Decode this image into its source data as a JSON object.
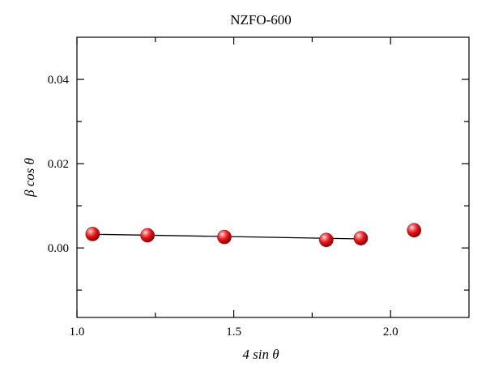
{
  "chart_data": {
    "type": "scatter",
    "title": "NZFO-600",
    "xlabel": "4 sin θ",
    "ylabel": "β cos θ",
    "xlim": [
      1.0,
      2.25
    ],
    "ylim": [
      -0.0165,
      0.05
    ],
    "xticks": [
      {
        "value": 1.0,
        "label": "1.0"
      },
      {
        "value": 1.5,
        "label": "1.5"
      },
      {
        "value": 2.0,
        "label": "2.0"
      }
    ],
    "xminor": [
      1.25,
      1.75
    ],
    "yticks": [
      {
        "value": 0.0,
        "label": "0.00"
      },
      {
        "value": 0.02,
        "label": "0.02"
      },
      {
        "value": 0.04,
        "label": "0.04"
      }
    ],
    "yminor": [
      -0.01,
      0.01,
      0.03
    ],
    "points": [
      {
        "x": 1.05,
        "y": 0.0033
      },
      {
        "x": 1.225,
        "y": 0.003
      },
      {
        "x": 1.47,
        "y": 0.0026
      },
      {
        "x": 1.795,
        "y": 0.0019
      },
      {
        "x": 1.905,
        "y": 0.0023
      },
      {
        "x": 2.075,
        "y": 0.0042
      }
    ],
    "fit_line": {
      "x": [
        1.05,
        1.905
      ],
      "y": [
        0.00325,
        0.00215
      ]
    },
    "grid": false,
    "marker_color": "#e8161b",
    "line_color": "#000000"
  }
}
